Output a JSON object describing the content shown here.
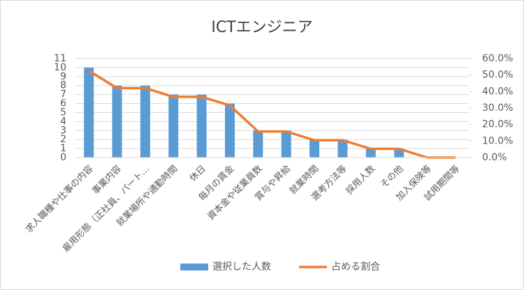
{
  "chart_data": {
    "type": "bar_line",
    "title": "ICTエンジニア",
    "categories": [
      "求人職種や仕事の内容",
      "事業内容",
      "雇用形態（正社員、パート…",
      "就業場所や通勤時間",
      "休日",
      "毎月の賃金",
      "資本金や従業員数",
      "賞与や昇給",
      "就業時間",
      "選考方法等",
      "採用人数",
      "その他",
      "加入保険等",
      "試用期間等"
    ],
    "series": [
      {
        "name": "選択した人数",
        "color": "#5b9bd5",
        "type": "bar",
        "values": [
          10,
          8,
          8,
          7,
          7,
          6,
          3,
          3,
          2,
          2,
          1,
          1,
          0,
          0
        ]
      },
      {
        "name": "占める割合",
        "color": "#ed7d31",
        "type": "line",
        "axis": "y2",
        "values": [
          52.6,
          42.1,
          42.1,
          36.8,
          36.8,
          31.6,
          15.8,
          15.8,
          10.5,
          10.5,
          5.3,
          5.3,
          0,
          0
        ]
      }
    ],
    "ylim": [
      0,
      11
    ],
    "yticks": [
      0,
      1,
      2,
      3,
      4,
      5,
      6,
      7,
      8,
      9,
      10,
      11
    ],
    "y2lim": [
      0,
      60
    ],
    "y2ticks": [
      {
        "value": 0,
        "label": "0.0%"
      },
      {
        "value": 10,
        "label": "10.0%"
      },
      {
        "value": 20,
        "label": "20.0%"
      },
      {
        "value": 30,
        "label": "30.0%"
      },
      {
        "value": 40,
        "label": "40.0%"
      },
      {
        "value": 50,
        "label": "50.0%"
      },
      {
        "value": 60,
        "label": "60.0%"
      }
    ],
    "grid": true,
    "legend": "bottom"
  }
}
